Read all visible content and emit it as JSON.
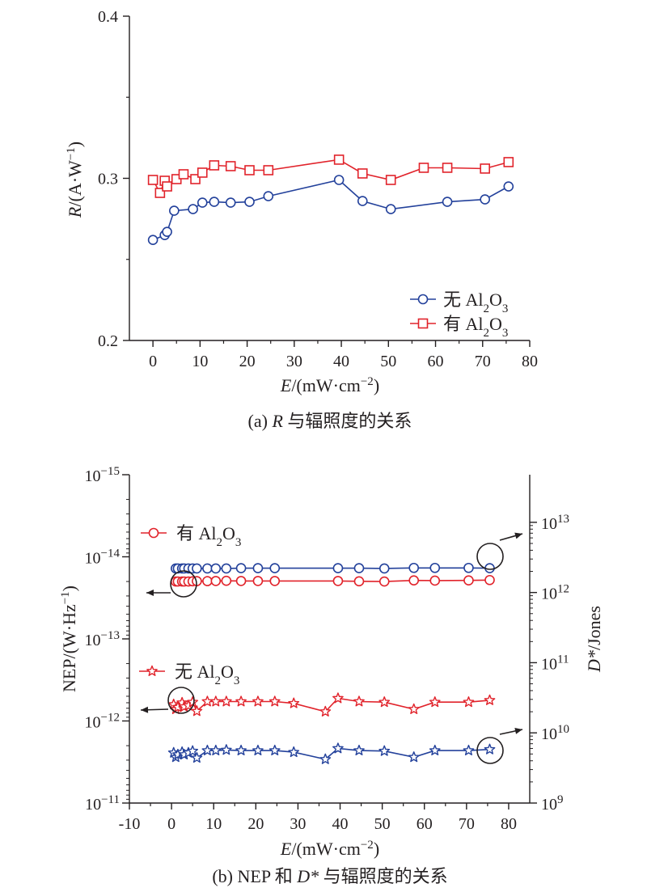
{
  "colors": {
    "blue": "#23419b",
    "red": "#e1232b",
    "axis": "#231f20"
  },
  "chart_data": [
    {
      "type": "line",
      "caption": {
        "prefix": "(a) ",
        "var": "R",
        "suffix": " 与辐照度的关系"
      },
      "xlabel": {
        "var": "E",
        "unit": "/(mW·cm",
        "sup": "−2",
        "close": ")"
      },
      "ylabel": {
        "var": "R",
        "unit": "/(A·W",
        "sup": "−1",
        "close": ")"
      },
      "xlim": [
        -5,
        80
      ],
      "ylim": [
        0.2,
        0.4
      ],
      "xticks": [
        0,
        10,
        20,
        30,
        40,
        50,
        60,
        70,
        80
      ],
      "yticks": [
        {
          "v": 0.2,
          "label": "0.2"
        },
        {
          "v": 0.3,
          "label": "0.3"
        },
        {
          "v": 0.4,
          "label": "0.4"
        }
      ],
      "legend_position": "bottom-right",
      "series": [
        {
          "name": {
            "pre": "无 Al",
            "s1": "2",
            "mid": "O",
            "s2": "3"
          },
          "color_key": "blue",
          "marker": "circle",
          "x": [
            0,
            2.5,
            3,
            4.5,
            8.5,
            10.5,
            13,
            16.5,
            20.5,
            24.5,
            39.5,
            44.5,
            50.5,
            62.5,
            70.5,
            75.5
          ],
          "y": [
            0.262,
            0.265,
            0.267,
            0.28,
            0.281,
            0.285,
            0.2855,
            0.285,
            0.2855,
            0.289,
            0.299,
            0.286,
            0.281,
            0.2855,
            0.287,
            0.295
          ]
        },
        {
          "name": {
            "pre": "有 Al",
            "s1": "2",
            "mid": "O",
            "s2": "3"
          },
          "color_key": "red",
          "marker": "square",
          "x": [
            0,
            1.5,
            2.5,
            3,
            5,
            6.5,
            9,
            10.5,
            13,
            16.5,
            20.5,
            24.5,
            39.5,
            44.5,
            50.5,
            57.5,
            62.5,
            70.5,
            75.5
          ],
          "y": [
            0.299,
            0.291,
            0.2985,
            0.295,
            0.2995,
            0.3025,
            0.2995,
            0.3035,
            0.308,
            0.3075,
            0.305,
            0.305,
            0.3115,
            0.303,
            0.299,
            0.3065,
            0.3065,
            0.306,
            0.31
          ]
        }
      ]
    },
    {
      "type": "line",
      "caption": {
        "prefix": "(b) NEP 和 ",
        "var": "D*",
        "suffix": " 与辐照度的关系"
      },
      "xlabel": {
        "var": "E",
        "unit": "/(mW·cm",
        "sup": "−2",
        "close": ")"
      },
      "ylabel": {
        "var": "",
        "unit": "NEP/(W·Hz",
        "sup": "−1",
        "close": ")"
      },
      "y2label": {
        "var": "D*",
        "unit": "/Jones",
        "sup": "",
        "close": ""
      },
      "xlim": [
        -10,
        85
      ],
      "xticks": [
        -10,
        0,
        10,
        20,
        30,
        40,
        50,
        60,
        70,
        80
      ],
      "yscale": "log",
      "yticks": [
        {
          "base": "10",
          "exp": "−15"
        },
        {
          "base": "10",
          "exp": "−14"
        },
        {
          "base": "10",
          "exp": "−13"
        },
        {
          "base": "10",
          "exp": "−12"
        },
        {
          "base": "10",
          "exp": "−11"
        }
      ],
      "y2scale": "log",
      "y2ticks": [
        {
          "base": "10",
          "exp": "13"
        },
        {
          "base": "10",
          "exp": "12"
        },
        {
          "base": "10",
          "exp": "11"
        },
        {
          "base": "10",
          "exp": "10"
        },
        {
          "base": "10",
          "exp": "9"
        }
      ],
      "legend_position": "left",
      "series": [
        {
          "name": {
            "pre": "有 Al",
            "s1": "2",
            "mid": "O",
            "s2": "3"
          },
          "color_key": "red",
          "marker": "circle",
          "axis": "left",
          "x": [
            1,
            1.5,
            2.5,
            3,
            4,
            5,
            6,
            8.5,
            10.5,
            13,
            16.5,
            20.5,
            24.5,
            39.5,
            44.5,
            50.5,
            57.5,
            62.5,
            70.5,
            75.5
          ],
          "y": [
            2e-14,
            2e-14,
            2e-14,
            2e-14,
            2e-14,
            1.99e-14,
            1.98e-14,
            1.98e-14,
            1.97e-14,
            1.96e-14,
            1.97e-14,
            1.97e-14,
            1.97e-14,
            1.97e-14,
            1.99e-14,
            2e-14,
            1.94e-14,
            1.95e-14,
            1.94e-14,
            1.92e-14
          ]
        },
        {
          "name": {
            "pre": "有 Al",
            "s1": "2",
            "mid": "O",
            "s2": "3"
          },
          "color_key": "blue",
          "marker": "circle",
          "axis": "right",
          "x": [
            1,
            1.5,
            2.5,
            3,
            4,
            5,
            6,
            8.5,
            10.5,
            13,
            16.5,
            20.5,
            24.5,
            39.5,
            44.5,
            50.5,
            57.5,
            62.5,
            70.5,
            75.5
          ],
          "y": [
            2200000000000.0,
            2200000000000.0,
            2200000000000.0,
            2200000000000.0,
            2200000000000.0,
            2200000000000.0,
            2200000000000.0,
            2200000000000.0,
            2200000000000.0,
            2200000000000.0,
            2220000000000.0,
            2220000000000.0,
            2220000000000.0,
            2220000000000.0,
            2220000000000.0,
            2200000000000.0,
            2240000000000.0,
            2240000000000.0,
            2240000000000.0,
            2220000000000.0
          ]
        },
        {
          "name": {
            "pre": "无 Al",
            "s1": "2",
            "mid": "O",
            "s2": "3"
          },
          "color_key": "red",
          "marker": "star",
          "axis": "left",
          "x": [
            0.5,
            1,
            1.5,
            2.5,
            3,
            4,
            5,
            6,
            8.5,
            10.5,
            13,
            16.5,
            20.5,
            24.5,
            29,
            36.5,
            39.5,
            44.5,
            50.5,
            57.5,
            62.5,
            70.5,
            75.5
          ],
          "y": [
            6.3e-13,
            7.2e-13,
            6.8e-13,
            6e-13,
            6.7e-13,
            6.5e-13,
            5.9e-13,
            7.6e-13,
            5.8e-13,
            5.8e-13,
            5.8e-13,
            5.8e-13,
            5.8e-13,
            5.8e-13,
            6.1e-13,
            7.7e-13,
            5.3e-13,
            5.8e-13,
            5.9e-13,
            7.2e-13,
            5.9e-13,
            5.9e-13,
            5.6e-13
          ]
        },
        {
          "name": {
            "pre": "无 Al",
            "s1": "2",
            "mid": "O",
            "s2": "3"
          },
          "color_key": "blue",
          "marker": "star",
          "axis": "right",
          "x": [
            0.5,
            1,
            1.5,
            2.5,
            3,
            4,
            5,
            6,
            8.5,
            10.5,
            13,
            16.5,
            20.5,
            24.5,
            29,
            36.5,
            39.5,
            44.5,
            50.5,
            57.5,
            62.5,
            70.5,
            75.5
          ],
          "y": [
            5200000000.0,
            4500000000.0,
            4900000000.0,
            5300000000.0,
            4900000000.0,
            5200000000.0,
            5500000000.0,
            4400000000.0,
            5600000000.0,
            5600000000.0,
            5700000000.0,
            5600000000.0,
            5600000000.0,
            5600000000.0,
            5300000000.0,
            4200000000.0,
            6000000000.0,
            5600000000.0,
            5500000000.0,
            4500000000.0,
            5600000000.0,
            5600000000.0,
            5800000000.0
          ]
        }
      ]
    }
  ]
}
